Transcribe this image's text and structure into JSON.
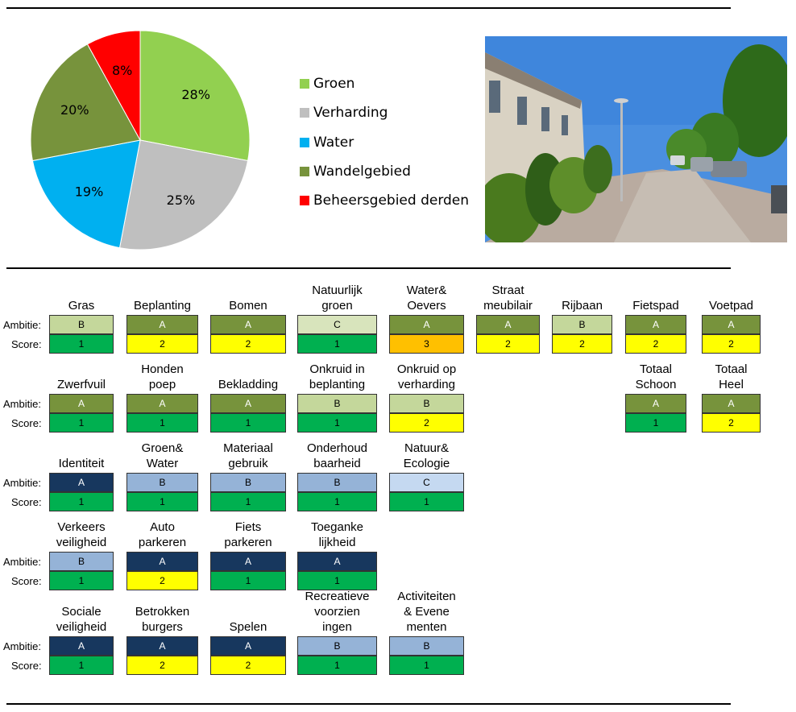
{
  "chart_data": {
    "type": "pie",
    "slices": [
      {
        "label": "Groen",
        "value": 28,
        "display": "28%",
        "color": "#92d050"
      },
      {
        "label": "Verharding",
        "value": 25,
        "display": "25%",
        "color": "#bfbfbf"
      },
      {
        "label": "Water",
        "value": 19,
        "display": "19%",
        "color": "#00b0f0"
      },
      {
        "label": "Wandelgebied",
        "value": 20,
        "display": "20%",
        "color": "#77933c"
      },
      {
        "label": "Beheersgebied derden",
        "value": 8,
        "display": "8%",
        "color": "#ff0000"
      }
    ]
  },
  "labels": {
    "ambitie": "Ambitie:",
    "score": "Score:"
  },
  "colors": {
    "ambitie": {
      "green": {
        "A": "#77933c",
        "B": "#c4d79b",
        "C": "#d8e4bc"
      },
      "blue": {
        "A": "#17375e",
        "B": "#95b3d7",
        "C": "#c5d9f1"
      }
    },
    "score": {
      "1": "#00b050",
      "2": "#ffff00",
      "3": "#ffc000"
    }
  },
  "rows": [
    {
      "theme": "green",
      "items": [
        {
          "col": 0,
          "name": "Gras",
          "ambitie": "B",
          "score": "1"
        },
        {
          "col": 1,
          "name": "Beplanting",
          "ambitie": "A",
          "score": "2"
        },
        {
          "col": 2,
          "name": "Bomen",
          "ambitie": "A",
          "score": "2"
        },
        {
          "col": 3,
          "name": "Natuurlijk\ngroen",
          "ambitie": "C",
          "score": "1"
        },
        {
          "col": 4,
          "name": "Water&\nOevers",
          "ambitie": "A",
          "score": "3"
        },
        {
          "col": 5,
          "name": "Straat\nmeubilair",
          "ambitie": "A",
          "score": "2"
        },
        {
          "col": 6,
          "name": "Rijbaan",
          "ambitie": "B",
          "score": "2"
        },
        {
          "col": 7,
          "name": "Fietspad",
          "ambitie": "A",
          "score": "2"
        },
        {
          "col": 8,
          "name": "Voetpad",
          "ambitie": "A",
          "score": "2"
        }
      ]
    },
    {
      "theme": "green",
      "items": [
        {
          "col": 0,
          "name": "Zwerfvuil",
          "ambitie": "A",
          "score": "1"
        },
        {
          "col": 1,
          "name": "Honden\npoep",
          "ambitie": "A",
          "score": "1"
        },
        {
          "col": 2,
          "name": "Bekladding",
          "ambitie": "A",
          "score": "1"
        },
        {
          "col": 3,
          "name": "Onkruid in\nbeplanting",
          "ambitie": "B",
          "score": "1"
        },
        {
          "col": 4,
          "name": "Onkruid op\nverharding",
          "ambitie": "B",
          "score": "2"
        },
        {
          "col": 7,
          "name": "Totaal\nSchoon",
          "ambitie": "A",
          "score": "1"
        },
        {
          "col": 8,
          "name": "Totaal\nHeel",
          "ambitie": "A",
          "score": "2"
        }
      ]
    },
    {
      "theme": "blue",
      "items": [
        {
          "col": 0,
          "name": "Identiteit",
          "ambitie": "A",
          "score": "1"
        },
        {
          "col": 1,
          "name": "Groen&\nWater",
          "ambitie": "B",
          "score": "1"
        },
        {
          "col": 2,
          "name": "Materiaal\ngebruik",
          "ambitie": "B",
          "score": "1"
        },
        {
          "col": 3,
          "name": "Onderhoud\nbaarheid",
          "ambitie": "B",
          "score": "1"
        },
        {
          "col": 4,
          "name": "Natuur&\nEcologie",
          "ambitie": "C",
          "score": "1"
        }
      ]
    },
    {
      "theme": "blue",
      "items": [
        {
          "col": 0,
          "name": "Verkeers\nveiligheid",
          "ambitie": "B",
          "score": "1"
        },
        {
          "col": 1,
          "name": "Auto\nparkeren",
          "ambitie": "A",
          "score": "2"
        },
        {
          "col": 2,
          "name": "Fiets\nparkeren",
          "ambitie": "A",
          "score": "1"
        },
        {
          "col": 3,
          "name": "Toeganke\nlijkheid",
          "ambitie": "A",
          "score": "1"
        }
      ]
    },
    {
      "theme": "blue",
      "items": [
        {
          "col": 0,
          "name": "Sociale\nveiligheid",
          "ambitie": "A",
          "score": "1"
        },
        {
          "col": 1,
          "name": "Betrokken\nburgers",
          "ambitie": "A",
          "score": "2"
        },
        {
          "col": 2,
          "name": "Spelen",
          "ambitie": "A",
          "score": "2"
        },
        {
          "col": 3,
          "name": "Recreatieve\nvoorzien\ningen",
          "ambitie": "B",
          "score": "1"
        },
        {
          "col": 4,
          "name": "Activiteiten\n& Evene\nmenten",
          "ambitie": "B",
          "score": "1"
        }
      ]
    }
  ]
}
